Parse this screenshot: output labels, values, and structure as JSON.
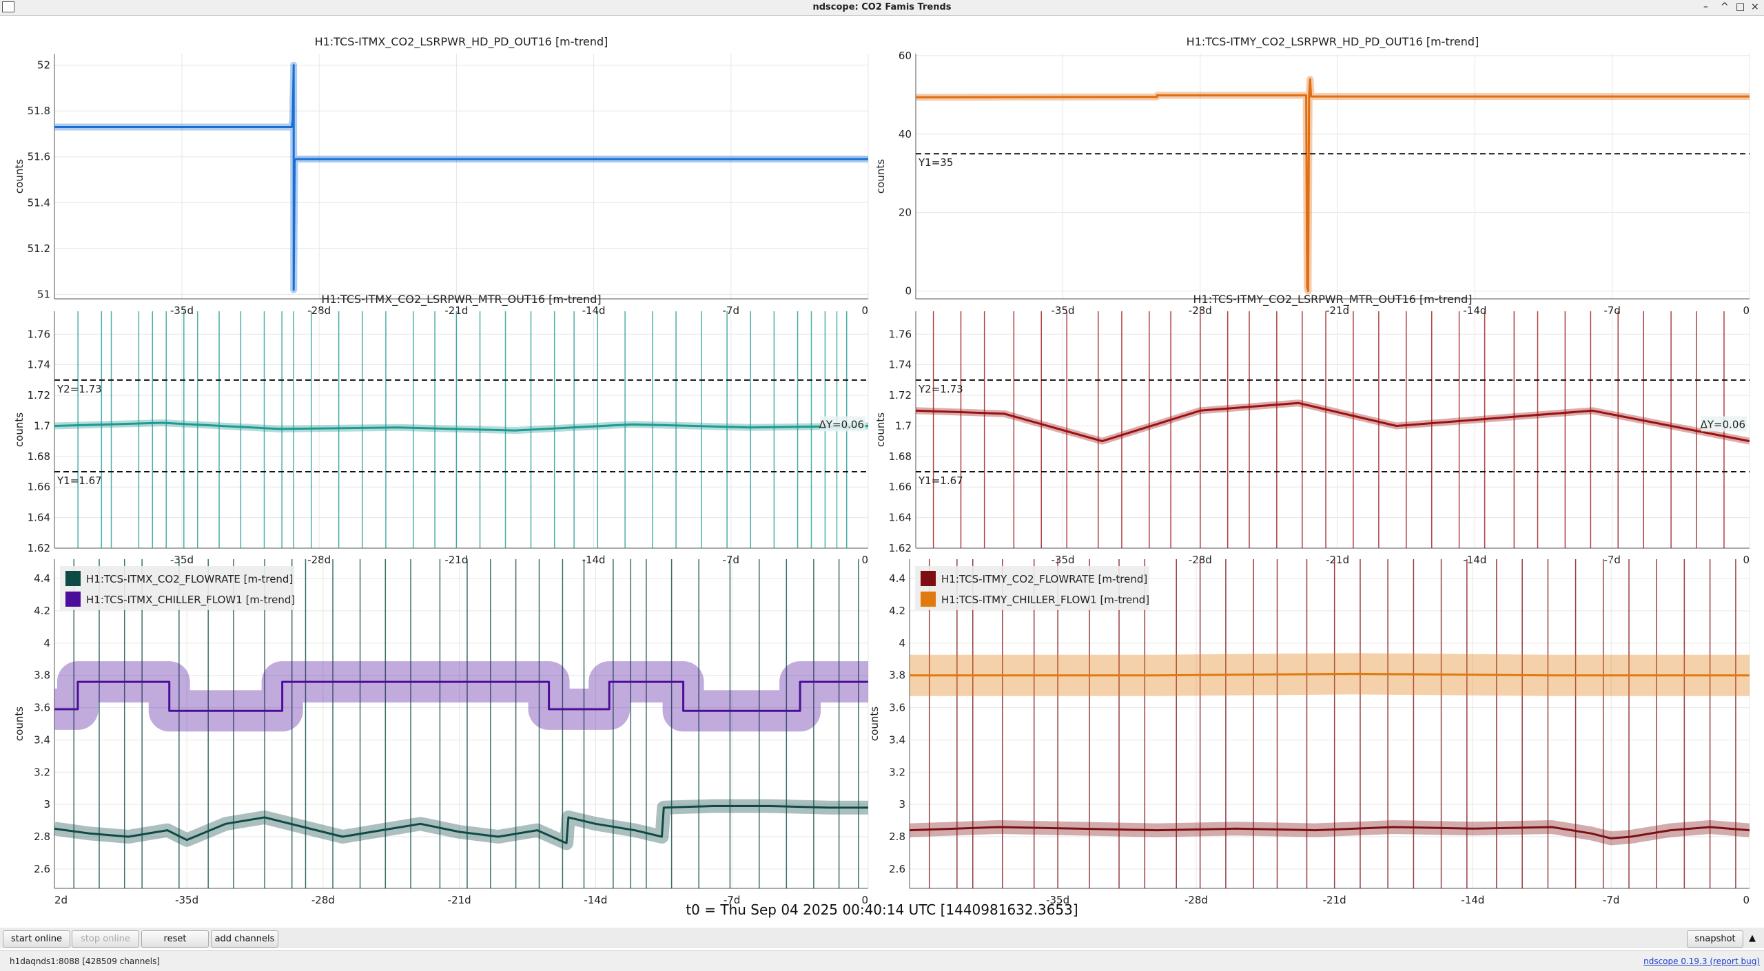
{
  "window": {
    "title": "ndscope: CO2 Famis Trends",
    "buttons": [
      "–",
      "^",
      "□",
      "×"
    ]
  },
  "t0_label": "t0 = Thu Sep 04 2025 00:40:14 UTC [1440981632.3653]",
  "controls": {
    "start_online": "start online",
    "stop_online": "stop online",
    "reset": "reset",
    "add_channels": "add channels",
    "snapshot": "snapshot",
    "expand_arrow": "▲"
  },
  "status": {
    "server": "h1daqnds1:8088  [428509 channels]",
    "version_link": "ndscope 0.19.3",
    "bug_link": "(report bug)"
  },
  "colors": {
    "itmx_hd": "#1a6fd4",
    "itmy_hd": "#e06d10",
    "itmx_mtr": "#1f9a92",
    "itmy_mtr": "#9b1010",
    "itmx_flowrate": "#0d4a45",
    "itmx_chiller": "#4b0e9a",
    "itmy_flowrate": "#7d0f12",
    "itmy_chiller": "#e07a0f",
    "cursor": "#111111"
  },
  "chart_data": [
    {
      "id": "tl",
      "type": "line",
      "title": "H1:TCS-ITMX_CO2_LSRPWR_HD_PD_OUT16 [m-trend]",
      "ylabel": "counts",
      "xlabel": "",
      "xlim": [
        -41.5,
        0
      ],
      "ylim": [
        50.98,
        52.05
      ],
      "yticks": [
        "51",
        "51.2",
        "51.4",
        "51.6",
        "51.8",
        "52"
      ],
      "xticks": [
        "-35d",
        "-28d",
        "-21d",
        "-14d",
        "-7d",
        "0"
      ],
      "grid": true,
      "series": [
        {
          "color": "itmx_hd",
          "x": [
            -41.5,
            -29.4,
            -29.35,
            -29.3,
            -29.3,
            -29.25,
            -29.2,
            0
          ],
          "y": [
            51.73,
            51.73,
            51.76,
            52.0,
            51.02,
            51.58,
            51.59,
            51.59
          ]
        }
      ],
      "cursors": []
    },
    {
      "id": "tr",
      "type": "line",
      "title": "H1:TCS-ITMY_CO2_LSRPWR_HD_PD_OUT16 [m-trend]",
      "ylabel": "counts",
      "xlabel": "",
      "xlim": [
        -42.5,
        0
      ],
      "ylim": [
        -2,
        60.5
      ],
      "yticks": [
        "0",
        "20",
        "40",
        "60"
      ],
      "xticks": [
        "-35d",
        "-28d",
        "-21d",
        "-14d",
        "-7d",
        "0"
      ],
      "grid": true,
      "series": [
        {
          "color": "itmy_hd",
          "x": [
            -42.5,
            -30.2,
            -30.2,
            -22.6,
            -22.55,
            -22.5,
            -22.45,
            -22.4,
            -22.35,
            -22.3,
            0
          ],
          "y": [
            49.4,
            49.5,
            49.9,
            49.9,
            1,
            0,
            50,
            54,
            49.6,
            49.6,
            49.6
          ]
        }
      ],
      "cursors": [
        {
          "y": 35,
          "label": "Y1=35"
        }
      ]
    },
    {
      "id": "ml",
      "type": "line",
      "title": "H1:TCS-ITMX_CO2_LSRPWR_MTR_OUT16 [m-trend]",
      "ylabel": "counts",
      "xlabel": "",
      "xlim": [
        -41.5,
        0
      ],
      "ylim": [
        1.62,
        1.775
      ],
      "yticks": [
        "1.62",
        "1.64",
        "1.66",
        "1.68",
        "1.7",
        "1.72",
        "1.74",
        "1.76"
      ],
      "xticks": [
        "-35d",
        "-28d",
        "-21d",
        "-14d",
        "-7d",
        "0"
      ],
      "grid": true,
      "series": [
        {
          "color": "itmx_mtr",
          "x": [
            -41.5,
            -36,
            -30,
            -24,
            -18,
            -12,
            -6,
            0
          ],
          "y": [
            1.7,
            1.702,
            1.698,
            1.699,
            1.697,
            1.701,
            1.699,
            1.7
          ]
        }
      ],
      "drop_lines": [
        -40.3,
        -39.1,
        -38.6,
        -37.2,
        -36.5,
        -35.8,
        -34.9,
        -34.2,
        -33.1,
        -32.0,
        -30.8,
        -29.9,
        -29.3,
        -28.4,
        -27.0,
        -25.8,
        -24.6,
        -23.2,
        -22.1,
        -21.0,
        -19.8,
        -18.5,
        -17.2,
        -16.0,
        -15.0,
        -13.8,
        -12.4,
        -11.0,
        -9.8,
        -8.5,
        -7.2,
        -6.0,
        -4.8,
        -3.6,
        -2.9,
        -2.2,
        -1.6,
        -1.1
      ],
      "cursors": [
        {
          "y": 1.73,
          "label": "Y2=1.73"
        },
        {
          "y": 1.67,
          "label": "Y1=1.67"
        }
      ],
      "delta_label": "ΔY=0.06"
    },
    {
      "id": "mr",
      "type": "line",
      "title": "H1:TCS-ITMY_CO2_LSRPWR_MTR_OUT16 [m-trend]",
      "ylabel": "counts",
      "xlabel": "",
      "xlim": [
        -42.5,
        0
      ],
      "ylim": [
        1.62,
        1.775
      ],
      "yticks": [
        "1.62",
        "1.64",
        "1.66",
        "1.68",
        "1.7",
        "1.72",
        "1.74",
        "1.76"
      ],
      "xticks": [
        "-35d",
        "-28d",
        "-21d",
        "-14d",
        "-7d",
        "0"
      ],
      "grid": true,
      "series": [
        {
          "color": "itmy_mtr",
          "x": [
            -42.5,
            -38,
            -33,
            -28,
            -23,
            -18,
            -13,
            -8,
            -4,
            0
          ],
          "y": [
            1.71,
            1.708,
            1.69,
            1.71,
            1.715,
            1.7,
            1.705,
            1.71,
            1.7,
            1.69
          ]
        }
      ],
      "drop_lines": [
        -41.6,
        -40.2,
        -39.0,
        -37.5,
        -36.1,
        -34.8,
        -33.2,
        -32.0,
        -30.6,
        -29.5,
        -28.0,
        -26.6,
        -25.5,
        -24.1,
        -22.8,
        -21.6,
        -20.2,
        -18.9,
        -17.5,
        -16.2,
        -14.8,
        -13.5,
        -12.0,
        -10.8,
        -9.4,
        -8.1,
        -6.7,
        -5.4,
        -4.0,
        -2.7,
        -1.3
      ],
      "cursors": [
        {
          "y": 1.73,
          "label": "Y2=1.73"
        },
        {
          "y": 1.67,
          "label": "Y1=1.67"
        }
      ],
      "delta_label": "ΔY=0.06"
    },
    {
      "id": "bl",
      "type": "line",
      "title": "",
      "ylabel": "counts",
      "xlabel": "",
      "xlim": [
        -41.8,
        0
      ],
      "ylim": [
        2.48,
        4.52
      ],
      "yticks": [
        "2.6",
        "2.8",
        "3",
        "3.2",
        "3.4",
        "3.6",
        "3.8",
        "4",
        "4.2",
        "4.4"
      ],
      "xticks": [
        "2d",
        "-35d",
        "-28d",
        "-21d",
        "-14d",
        "-7d",
        "0"
      ],
      "grid": true,
      "series": [
        {
          "name": "H1:TCS-ITMX_CO2_FLOWRATE [m-trend]",
          "color": "itmx_flowrate",
          "x": [
            -41.8,
            -40,
            -38,
            -36,
            -35,
            -33,
            -31,
            -29,
            -27,
            -25,
            -23,
            -21,
            -19,
            -17,
            -15.5,
            -15.4,
            -14,
            -12,
            -10.6,
            -10.5,
            -8,
            -5,
            -2,
            0
          ],
          "y": [
            2.85,
            2.82,
            2.8,
            2.84,
            2.78,
            2.88,
            2.92,
            2.86,
            2.8,
            2.84,
            2.88,
            2.83,
            2.8,
            2.84,
            2.76,
            2.92,
            2.88,
            2.84,
            2.8,
            2.98,
            2.99,
            2.99,
            2.98,
            2.98
          ]
        },
        {
          "name": "H1:TCS-ITMX_CHILLER_FLOW1 [m-trend]",
          "color": "itmx_chiller",
          "x": [
            -41.8,
            -40.6,
            -40.6,
            -35.9,
            -35.9,
            -30.1,
            -30.1,
            -16.4,
            -16.4,
            -13.3,
            -13.3,
            -9.5,
            -9.5,
            -3.5,
            -3.5,
            0
          ],
          "y": [
            3.59,
            3.59,
            3.76,
            3.76,
            3.58,
            3.58,
            3.76,
            3.76,
            3.59,
            3.59,
            3.76,
            3.76,
            3.58,
            3.58,
            3.76,
            3.76
          ]
        }
      ],
      "drop_lines": [
        -40.8,
        -39.5,
        -38.2,
        -37.3,
        -35.4,
        -33.9,
        -32.6,
        -31.0,
        -29.6,
        -28.9,
        -27.5,
        -26.1,
        -24.8,
        -23.5,
        -22.0,
        -20.6,
        -19.4,
        -18.1,
        -16.9,
        -15.7,
        -14.6,
        -13.1,
        -12.2,
        -11.4,
        -10.1,
        -8.7,
        -7.1,
        -5.6,
        -4.2,
        -2.8,
        -1.5,
        -0.5
      ],
      "legend": "top-left"
    },
    {
      "id": "br",
      "type": "line",
      "title": "",
      "ylabel": "counts",
      "xlabel": "",
      "xlim": [
        -42.5,
        0
      ],
      "ylim": [
        2.48,
        4.52
      ],
      "yticks": [
        "2.6",
        "2.8",
        "3",
        "3.2",
        "3.4",
        "3.6",
        "3.8",
        "4",
        "4.2",
        "4.4"
      ],
      "xticks": [
        "-35d",
        "-28d",
        "-21d",
        "-14d",
        "-7d",
        "0"
      ],
      "grid": true,
      "series": [
        {
          "name": "H1:TCS-ITMY_CO2_FLOWRATE [m-trend]",
          "color": "itmy_flowrate",
          "x": [
            -42.5,
            -38,
            -34,
            -30,
            -26,
            -22,
            -18,
            -14,
            -10,
            -8,
            -7,
            -6,
            -4,
            -2,
            0
          ],
          "y": [
            2.84,
            2.86,
            2.85,
            2.84,
            2.85,
            2.84,
            2.86,
            2.85,
            2.86,
            2.82,
            2.79,
            2.8,
            2.84,
            2.86,
            2.84
          ]
        },
        {
          "name": "H1:TCS-ITMY_CHILLER_FLOW1 [m-trend]",
          "color": "itmy_chiller",
          "x": [
            -42.5,
            -30,
            -20,
            -10,
            0
          ],
          "y": [
            3.8,
            3.8,
            3.81,
            3.8,
            3.8
          ]
        }
      ],
      "drop_lines": [
        -41.5,
        -40.1,
        -39.3,
        -37.8,
        -36.2,
        -35.0,
        -33.4,
        -31.9,
        -30.6,
        -29.0,
        -27.8,
        -26.5,
        -25.1,
        -23.9,
        -22.4,
        -21.0,
        -19.7,
        -18.3,
        -17.0,
        -15.6,
        -14.3,
        -12.8,
        -11.5,
        -10.2,
        -8.8,
        -7.4,
        -6.1,
        -4.7,
        -3.3,
        -2.0,
        -0.7
      ],
      "legend": "top-left"
    }
  ]
}
